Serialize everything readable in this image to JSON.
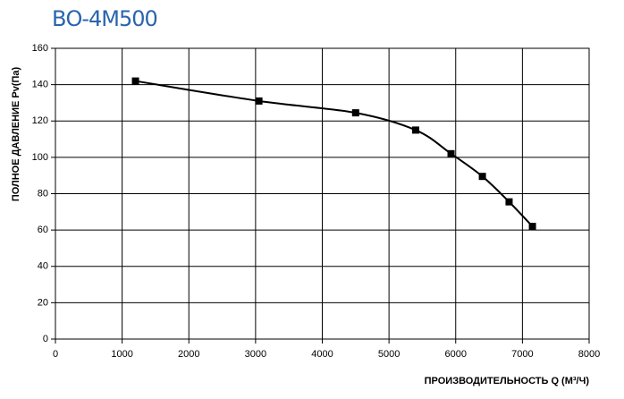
{
  "chart_data": {
    "type": "line",
    "title": "ВО-4М500",
    "x_label": "ПРОИЗВОДИТЕЛЬНОСТЬ  Q  (М³/Ч)",
    "y_label": "ПОЛНОЕ ДАВЛЕНИЕ  Pv(Па)",
    "x": [
      1200,
      3050,
      4500,
      5400,
      5930,
      6400,
      6800,
      7150
    ],
    "series": [
      {
        "name": "Pv",
        "color": "#000000",
        "values": [
          142,
          131,
          124.5,
          115,
          102,
          89.5,
          75.5,
          62
        ]
      }
    ],
    "xlim": [
      0,
      8000
    ],
    "xticks": [
      0,
      1000,
      2000,
      3000,
      4000,
      5000,
      6000,
      7000,
      8000
    ],
    "ylim": [
      0,
      160
    ],
    "yticks": [
      0,
      20,
      40,
      60,
      80,
      100,
      120,
      140,
      160
    ],
    "grid": true
  }
}
